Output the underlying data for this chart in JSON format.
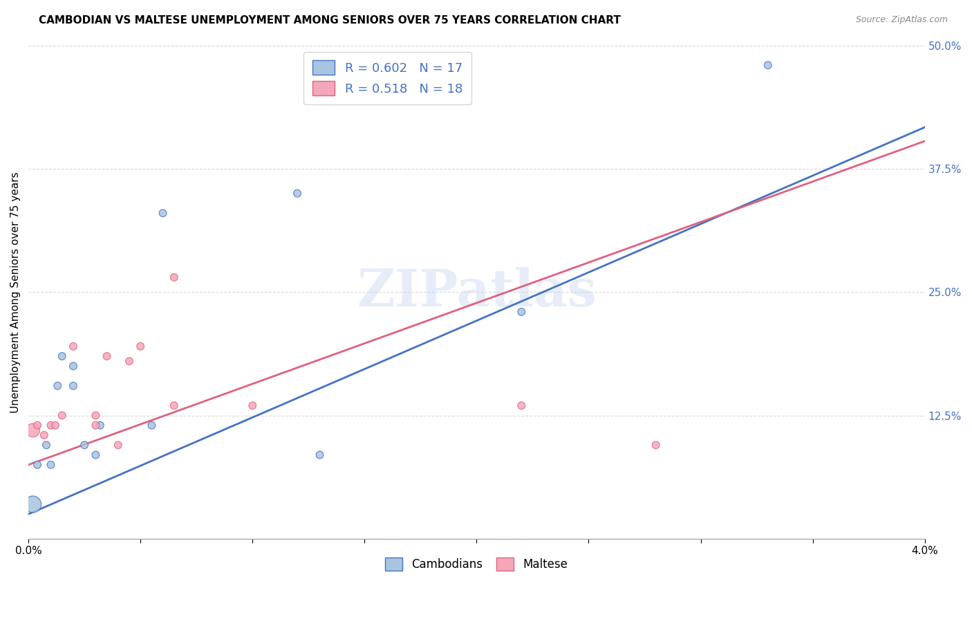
{
  "title": "CAMBODIAN VS MALTESE UNEMPLOYMENT AMONG SENIORS OVER 75 YEARS CORRELATION CHART",
  "source": "Source: ZipAtlas.com",
  "xlabel": "",
  "ylabel": "Unemployment Among Seniors over 75 years",
  "xlim": [
    0.0,
    0.04
  ],
  "ylim": [
    0.0,
    0.5
  ],
  "xticks": [
    0.0,
    0.005,
    0.01,
    0.015,
    0.02,
    0.025,
    0.03,
    0.035,
    0.04
  ],
  "xticklabels": [
    "0.0%",
    "",
    "",
    "",
    "",
    "",
    "",
    "",
    "4.0%"
  ],
  "ytick_positions": [
    0.0,
    0.125,
    0.25,
    0.375,
    0.5
  ],
  "yticklabels": [
    "",
    "12.5%",
    "25.0%",
    "37.5%",
    "50.0%"
  ],
  "cambodian_color": "#a8c4e0",
  "maltese_color": "#f4a7b9",
  "line_color_cambodian": "#4472c4",
  "line_color_maltese": "#e06080",
  "R_cambodian": 0.602,
  "N_cambodian": 17,
  "R_maltese": 0.518,
  "N_maltese": 18,
  "watermark": "ZIPatlas",
  "cambodian_x": [
    0.0002,
    0.0004,
    0.0008,
    0.001,
    0.0013,
    0.0015,
    0.002,
    0.002,
    0.0025,
    0.003,
    0.0032,
    0.0055,
    0.006,
    0.012,
    0.013,
    0.022,
    0.033
  ],
  "cambodian_y": [
    0.035,
    0.075,
    0.095,
    0.075,
    0.155,
    0.185,
    0.155,
    0.175,
    0.095,
    0.085,
    0.115,
    0.115,
    0.33,
    0.35,
    0.085,
    0.23,
    0.48
  ],
  "cambodian_size": [
    300,
    60,
    60,
    60,
    60,
    60,
    60,
    60,
    60,
    60,
    60,
    60,
    60,
    60,
    60,
    60,
    60
  ],
  "maltese_x": [
    0.0002,
    0.0004,
    0.0007,
    0.001,
    0.0012,
    0.0015,
    0.002,
    0.003,
    0.003,
    0.0035,
    0.004,
    0.0045,
    0.005,
    0.0065,
    0.0065,
    0.01,
    0.022,
    0.028
  ],
  "maltese_y": [
    0.11,
    0.115,
    0.105,
    0.115,
    0.115,
    0.125,
    0.195,
    0.115,
    0.125,
    0.185,
    0.095,
    0.18,
    0.195,
    0.265,
    0.135,
    0.135,
    0.135,
    0.095
  ],
  "maltese_size": [
    200,
    60,
    60,
    60,
    60,
    60,
    60,
    60,
    60,
    60,
    60,
    60,
    60,
    60,
    60,
    60,
    60,
    60
  ],
  "background_color": "#ffffff",
  "grid_color": "#d9d9d9",
  "cam_line_intercept": 0.025,
  "cam_line_slope": 9.8,
  "mal_line_intercept": 0.075,
  "mal_line_slope": 8.2
}
